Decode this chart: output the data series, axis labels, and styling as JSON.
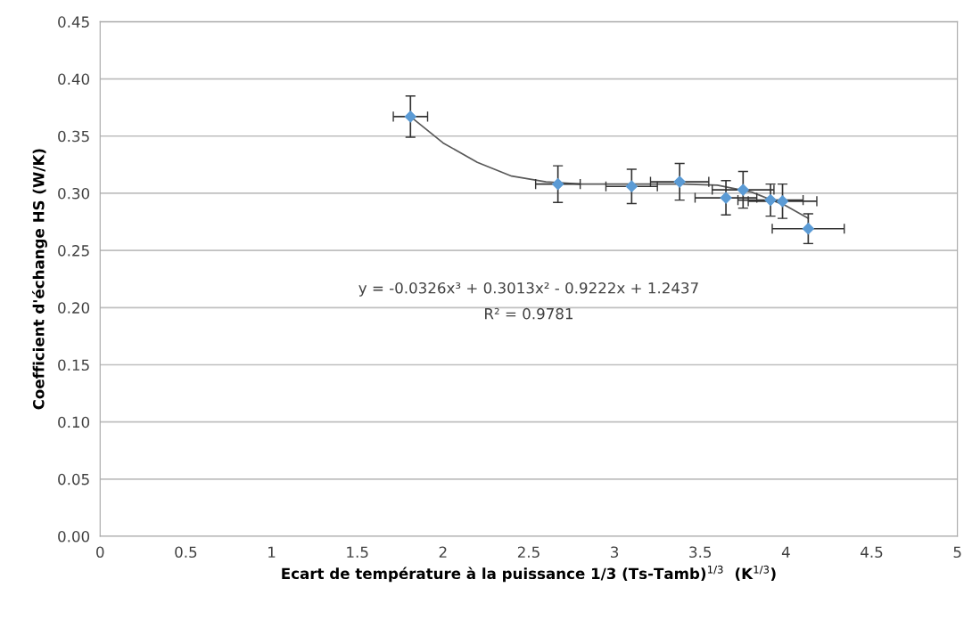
{
  "chart_data": {
    "type": "scatter",
    "xlabel": "Ecart de température à la puissance 1/3 (Ts-Tamb)$^{1/3}$  (K$^{1/3}$)",
    "ylabel": "Coefficient d'échange HS (W/K)",
    "annotations": [
      "y = -0.0326x³ + 0.3013x² - 0.9222x + 1.2437",
      "R² = 0.9781"
    ],
    "series": [
      {
        "marker": "diamond",
        "color": "#5b9bd5",
        "x": [
          1.81,
          2.67,
          3.1,
          3.38,
          3.65,
          3.75,
          3.91,
          3.98,
          4.13
        ],
        "values": [
          0.367,
          0.308,
          0.306,
          0.31,
          0.296,
          0.303,
          0.294,
          0.293,
          0.269
        ],
        "errors": [
          0.018,
          0.016,
          0.015,
          0.016,
          0.015,
          0.016,
          0.014,
          0.015,
          0.013
        ],
        "xerrors": [
          0.1,
          0.13,
          0.15,
          0.17,
          0.18,
          0.18,
          0.19,
          0.2,
          0.21
        ]
      },
      {
        "type": "line",
        "marker": "none",
        "color": "#595959",
        "x": [
          1.81,
          2.0,
          2.2,
          2.4,
          2.6,
          2.8,
          3.0,
          3.2,
          3.4,
          3.6,
          3.8,
          4.0,
          4.13
        ],
        "values": [
          0.367,
          0.344,
          0.327,
          0.315,
          0.31,
          0.308,
          0.308,
          0.308,
          0.308,
          0.307,
          0.301,
          0.289,
          0.278
        ]
      }
    ],
    "xlim": [
      0,
      5
    ],
    "xticks": [
      0,
      0.5,
      1,
      1.5,
      2,
      2.5,
      3,
      3.5,
      4,
      4.5,
      5
    ],
    "ylim": [
      0,
      0.45
    ],
    "yticks": [
      {
        "value": 0,
        "label": "0.00"
      },
      {
        "value": 0.05,
        "label": "0.05"
      },
      {
        "value": 0.1,
        "label": "0.10"
      },
      {
        "value": 0.15,
        "label": "0.15"
      },
      {
        "value": 0.2,
        "label": "0.20"
      },
      {
        "value": 0.25,
        "label": "0.25"
      },
      {
        "value": 0.3,
        "label": "0.30"
      },
      {
        "value": 0.35,
        "label": "0.35"
      },
      {
        "value": 0.4,
        "label": "0.40"
      },
      {
        "value": 0.45,
        "label": "0.45"
      }
    ],
    "grid": "y"
  }
}
